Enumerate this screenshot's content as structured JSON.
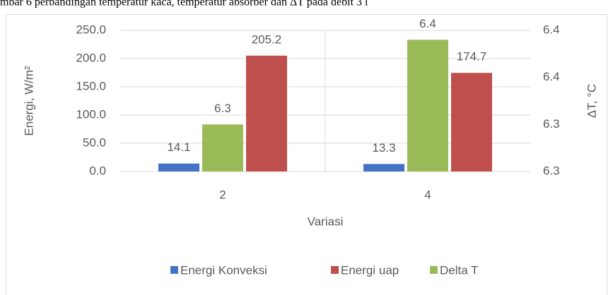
{
  "chart_data": {
    "type": "bar",
    "caption": "mbar 6 perbandingan temperatur kaca, temperatur absorber dan ΔT pada debit 3 l",
    "xlabel": "Variasi",
    "ylabel": "Energi, W/m²",
    "y2label": "ΔT, °C",
    "categories": [
      "2",
      "4"
    ],
    "series": [
      {
        "name": "Energi Konveksi",
        "color": "#4472c4",
        "values": [
          14.1,
          13.3
        ]
      },
      {
        "name": "Energi uap",
        "color": "#c0504d",
        "values": [
          205.2,
          174.7
        ]
      },
      {
        "name": "Delta T",
        "color": "#9bbb59",
        "axis": "y2",
        "values": [
          6.3,
          6.39
        ],
        "value_labels": [
          "6.3",
          "6.4"
        ]
      }
    ],
    "ylim": [
      0,
      250
    ],
    "yticks": [
      {
        "value": 0,
        "label": "0.0"
      },
      {
        "value": 50,
        "label": "50.0"
      },
      {
        "value": 100,
        "label": "100.0"
      },
      {
        "value": 150,
        "label": "150.0"
      },
      {
        "value": 200,
        "label": "200.0"
      },
      {
        "value": 250,
        "label": "250.0"
      }
    ],
    "y2lim": [
      6.25,
      6.4
    ],
    "y2ticks": [
      {
        "value": 6.25,
        "label": "6.3"
      },
      {
        "value": 6.3,
        "label": "6.3"
      },
      {
        "value": 6.35,
        "label": "6.4"
      },
      {
        "value": 6.4,
        "label": "6.4"
      }
    ],
    "grid": true,
    "legend": "bottom"
  }
}
